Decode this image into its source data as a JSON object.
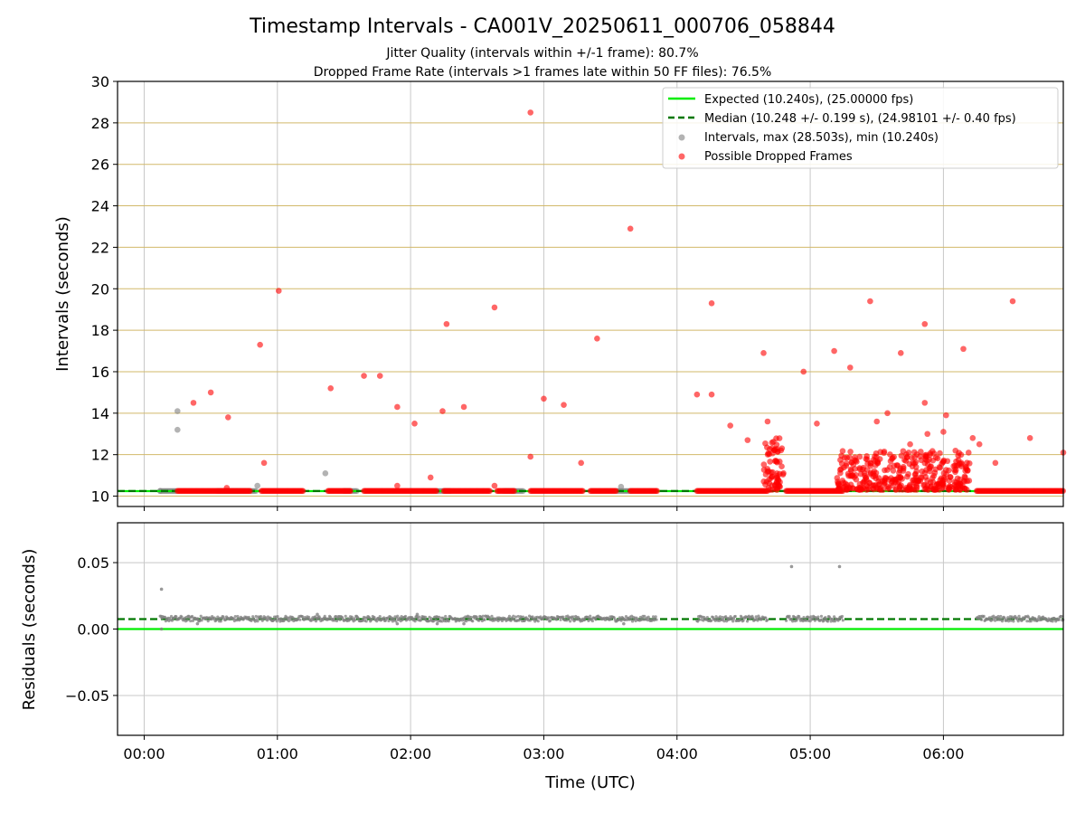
{
  "chart_data": {
    "type": "scatter",
    "title": "Timestamp Intervals - CA001V_20250611_000706_058844",
    "subtitles": [
      "Jitter Quality (intervals within +/-1 frame): 80.7%",
      "Dropped Frame Rate (intervals >1 frames late within 50 FF files): 76.5%"
    ],
    "xlabel": "Time (UTC)",
    "x_unit": "hours",
    "xlim": [
      -0.2,
      6.9
    ],
    "x_ticks": [
      0,
      1,
      2,
      3,
      4,
      5,
      6
    ],
    "x_tick_labels": [
      "00:00",
      "01:00",
      "02:00",
      "03:00",
      "04:00",
      "05:00",
      "06:00"
    ],
    "colors": {
      "expected": "#00ee00",
      "median": "#007700",
      "intervals": "#808080",
      "dropped": "#ff0000",
      "grid_top": "#d2b96a",
      "grid_bottom": "#c8c8c8"
    },
    "top": {
      "ylabel": "Intervals (seconds)",
      "ylim": [
        9.5,
        30
      ],
      "y_ticks": [
        10,
        12,
        14,
        16,
        18,
        20,
        22,
        24,
        26,
        28,
        30
      ],
      "y_tick_labels": [
        "10",
        "12",
        "14",
        "16",
        "18",
        "20",
        "22",
        "24",
        "26",
        "28",
        "30"
      ],
      "expected": 10.24,
      "median": 10.248,
      "legend": [
        "Expected (10.240s), (25.00000 fps)",
        "Median (10.248 +/- 0.199 s), (24.98101 +/- 0.40 fps)",
        "Intervals, max (28.503s), min (10.240s)",
        "Possible Dropped Frames"
      ],
      "baseline_y": 10.248,
      "intervals_segments": [
        [
          0.12,
          0.25
        ],
        [
          0.55,
          0.85
        ],
        [
          1.5,
          1.6
        ],
        [
          2.2,
          2.3
        ],
        [
          2.7,
          2.85
        ],
        [
          3.55,
          3.65
        ]
      ],
      "dropped_segments": [
        [
          0.25,
          0.8
        ],
        [
          0.88,
          1.2
        ],
        [
          1.38,
          1.55
        ],
        [
          1.65,
          2.2
        ],
        [
          2.25,
          2.6
        ],
        [
          2.65,
          2.78
        ],
        [
          2.9,
          3.3
        ],
        [
          3.35,
          3.55
        ],
        [
          3.65,
          3.85
        ],
        [
          4.15,
          4.68
        ],
        [
          4.82,
          5.25
        ],
        [
          6.25,
          6.9
        ]
      ],
      "intervals_points": [
        [
          0.25,
          14.1
        ],
        [
          0.25,
          13.2
        ],
        [
          0.85,
          10.5
        ],
        [
          1.36,
          11.1
        ],
        [
          3.58,
          10.45
        ],
        [
          0.12,
          10.25
        ]
      ],
      "dropped_points": [
        [
          0.37,
          14.5
        ],
        [
          0.5,
          15.0
        ],
        [
          0.63,
          13.8
        ],
        [
          0.87,
          17.3
        ],
        [
          0.9,
          11.6
        ],
        [
          1.01,
          19.9
        ],
        [
          1.4,
          15.2
        ],
        [
          1.65,
          15.8
        ],
        [
          1.77,
          15.8
        ],
        [
          1.9,
          14.3
        ],
        [
          1.9,
          10.5
        ],
        [
          2.03,
          13.5
        ],
        [
          2.15,
          10.9
        ],
        [
          2.24,
          14.1
        ],
        [
          2.27,
          18.3
        ],
        [
          2.4,
          14.3
        ],
        [
          2.63,
          19.1
        ],
        [
          2.63,
          10.5
        ],
        [
          2.9,
          28.5
        ],
        [
          2.9,
          11.9
        ],
        [
          3.0,
          14.7
        ],
        [
          3.15,
          14.4
        ],
        [
          3.28,
          11.6
        ],
        [
          3.4,
          17.6
        ],
        [
          3.65,
          22.9
        ],
        [
          4.15,
          14.9
        ],
        [
          4.26,
          19.3
        ],
        [
          4.26,
          14.9
        ],
        [
          4.4,
          13.4
        ],
        [
          4.53,
          12.7
        ],
        [
          4.65,
          16.9
        ],
        [
          4.68,
          13.6
        ],
        [
          4.95,
          16.0
        ],
        [
          5.05,
          13.5
        ],
        [
          5.18,
          17.0
        ],
        [
          5.3,
          16.2
        ],
        [
          5.45,
          19.4
        ],
        [
          5.5,
          13.6
        ],
        [
          5.58,
          14.0
        ],
        [
          5.68,
          16.9
        ],
        [
          5.75,
          12.5
        ],
        [
          5.86,
          18.3
        ],
        [
          5.86,
          14.5
        ],
        [
          5.88,
          13.0
        ],
        [
          6.0,
          13.1
        ],
        [
          6.02,
          13.9
        ],
        [
          6.15,
          17.1
        ],
        [
          6.22,
          12.8
        ],
        [
          6.27,
          12.5
        ],
        [
          6.39,
          11.6
        ],
        [
          6.52,
          19.4
        ],
        [
          6.65,
          12.8
        ],
        [
          6.9,
          12.1
        ],
        [
          0.62,
          10.4
        ]
      ],
      "dropped_clusters": [
        {
          "x_range": [
            4.65,
            4.8
          ],
          "y_range": [
            10.3,
            12.8
          ],
          "count": 70
        },
        {
          "x_range": [
            5.2,
            6.2
          ],
          "y_range": [
            10.3,
            12.2
          ],
          "count": 380
        }
      ]
    },
    "bottom": {
      "ylabel": "Residuals (seconds)",
      "ylim": [
        -0.08,
        0.08
      ],
      "y_ticks": [
        -0.05,
        0,
        0.05
      ],
      "y_tick_labels": [
        "−0.05",
        "0.00",
        "0.05"
      ],
      "expected": 0.0,
      "median": 0.0075,
      "residual_segments": [
        [
          0.12,
          3.85
        ],
        [
          4.15,
          4.68
        ],
        [
          4.82,
          5.25
        ],
        [
          6.25,
          6.9
        ]
      ],
      "residual_level": 0.0078,
      "residual_outliers": [
        [
          0.13,
          0.03
        ],
        [
          4.86,
          0.047
        ],
        [
          5.22,
          0.047
        ],
        [
          0.13,
          0.0
        ],
        [
          2.2,
          0.004
        ],
        [
          1.9,
          0.004
        ],
        [
          3.6,
          0.004
        ],
        [
          2.4,
          0.004
        ],
        [
          0.4,
          0.004
        ],
        [
          1.3,
          0.011
        ],
        [
          2.05,
          0.011
        ]
      ]
    }
  }
}
